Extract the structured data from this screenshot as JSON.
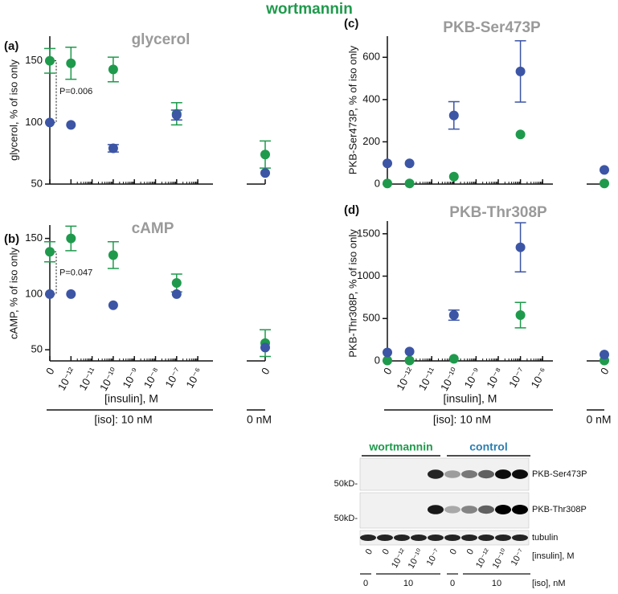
{
  "figure_title": "wortmannin",
  "chart_data": [
    {
      "type": "scatter",
      "panel": "(a)",
      "title": "glycerol",
      "y_label": "glycerol, % of iso only",
      "annotation": "P=0.006",
      "ylim": [
        50,
        170
      ],
      "yticks": [
        50,
        100,
        150
      ],
      "series": [
        {
          "color": "#1f9a4c",
          "values": [
            150,
            148,
            null,
            143,
            null,
            null,
            107,
            null,
            74
          ],
          "errors": [
            10,
            13,
            null,
            10,
            null,
            null,
            9,
            null,
            11
          ]
        },
        {
          "color": "#3c55a5",
          "values": [
            100,
            98,
            null,
            79,
            null,
            null,
            106,
            null,
            59
          ],
          "errors": [
            null,
            null,
            null,
            3,
            null,
            null,
            4,
            null,
            null
          ]
        }
      ]
    },
    {
      "type": "scatter",
      "panel": "(b)",
      "title": "cAMP",
      "y_label": "cAMP, % of iso only",
      "annotation": "P=0.047",
      "categories": [
        "0",
        "10⁻¹²",
        "10⁻¹¹",
        "10⁻¹⁰",
        "10⁻⁹",
        "10⁻⁸",
        "10⁻⁷",
        "10⁻⁶",
        "0"
      ],
      "x_label": "[insulin], M",
      "iso_label": "[iso]: 10 nM",
      "iso0_label": "0 nM",
      "ylim": [
        40,
        162
      ],
      "yticks": [
        50,
        100,
        150
      ],
      "series": [
        {
          "color": "#1f9a4c",
          "values": [
            138,
            150,
            null,
            135,
            null,
            null,
            110,
            null,
            56
          ],
          "errors": [
            9,
            11,
            null,
            12,
            null,
            null,
            8,
            null,
            12
          ]
        },
        {
          "color": "#3c55a5",
          "values": [
            100,
            100,
            null,
            90,
            null,
            null,
            100,
            null,
            52
          ],
          "errors": [
            null,
            null,
            null,
            null,
            null,
            null,
            null,
            null,
            null
          ]
        }
      ]
    },
    {
      "type": "scatter",
      "panel": "(c)",
      "title": "PKB-Ser473P",
      "y_label": "PKB-Ser473P, % of iso only",
      "ylim": [
        0,
        700
      ],
      "yticks": [
        0,
        200,
        400,
        600
      ],
      "series": [
        {
          "color": "#1f9a4c",
          "values": [
            3,
            3,
            null,
            35,
            null,
            null,
            235,
            null,
            3
          ],
          "errors": [
            null,
            null,
            null,
            null,
            null,
            null,
            null,
            null,
            null
          ]
        },
        {
          "color": "#3c55a5",
          "values": [
            98,
            98,
            null,
            325,
            null,
            null,
            533,
            null,
            67
          ],
          "errors": [
            null,
            null,
            null,
            65,
            null,
            null,
            145,
            null,
            null
          ]
        }
      ]
    },
    {
      "type": "scatter",
      "panel": "(d)",
      "title": "PKB-Thr308P",
      "y_label": "PKB-Thr308P, % of iso only",
      "categories": [
        "0",
        "10⁻¹²",
        "10⁻¹¹",
        "10⁻¹⁰",
        "10⁻⁹",
        "10⁻⁸",
        "10⁻⁷",
        "10⁻⁶",
        "0"
      ],
      "x_label": "[insulin], M",
      "iso_label": "[iso]: 10 nM",
      "iso0_label": "0 nM",
      "ylim": [
        0,
        1650
      ],
      "yticks": [
        0,
        500,
        1000,
        1500
      ],
      "series": [
        {
          "color": "#1f9a4c",
          "values": [
            5,
            5,
            null,
            25,
            null,
            null,
            540,
            null,
            5
          ],
          "errors": [
            null,
            null,
            null,
            null,
            null,
            null,
            150,
            null,
            null
          ]
        },
        {
          "color": "#3c55a5",
          "values": [
            100,
            110,
            null,
            540,
            null,
            null,
            1340,
            null,
            75
          ],
          "errors": [
            null,
            null,
            null,
            60,
            null,
            null,
            290,
            null,
            null
          ]
        }
      ]
    }
  ],
  "blot": {
    "groups": [
      "wortmannin",
      "control"
    ],
    "rows": [
      "PKB-Ser473P",
      "PKB-Thr308P",
      "tubulin"
    ],
    "markers": [
      "50kD-",
      "50kD-"
    ],
    "insulin": [
      "0",
      "0",
      "10⁻¹²",
      "10⁻¹⁰",
      "10⁻⁷",
      "0",
      "0",
      "10⁻¹²",
      "10⁻¹⁰",
      "10⁻⁷"
    ],
    "insulin_label": "[insulin], M",
    "iso": [
      "0",
      "10",
      "0",
      "10"
    ],
    "iso_label": "[iso], nM"
  }
}
